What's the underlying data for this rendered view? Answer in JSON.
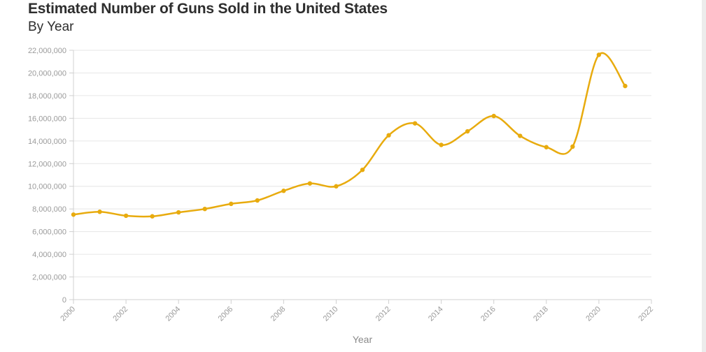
{
  "chart_data": {
    "type": "line",
    "title": "Estimated Number of Guns Sold in the United States",
    "subtitle": "By Year",
    "xlabel": "Year",
    "ylabel": "",
    "xlim": [
      2000,
      2022
    ],
    "ylim": [
      0,
      22000000
    ],
    "x_ticks": [
      2000,
      2002,
      2004,
      2006,
      2008,
      2010,
      2012,
      2014,
      2016,
      2018,
      2020,
      2022
    ],
    "y_ticks": [
      0,
      2000000,
      4000000,
      6000000,
      8000000,
      10000000,
      12000000,
      14000000,
      16000000,
      18000000,
      20000000,
      22000000
    ],
    "grid": true,
    "series": [
      {
        "color": "#e8ab0e",
        "x": [
          2000,
          2001,
          2002,
          2003,
          2004,
          2005,
          2006,
          2007,
          2008,
          2009,
          2010,
          2011,
          2012,
          2013,
          2014,
          2015,
          2016,
          2017,
          2018,
          2019,
          2020,
          2021
        ],
        "values": [
          7500000,
          7750000,
          7400000,
          7350000,
          7700000,
          8000000,
          8450000,
          8750000,
          9600000,
          10250000,
          10000000,
          11450000,
          14500000,
          15550000,
          13650000,
          14850000,
          16200000,
          14450000,
          13450000,
          13500000,
          21600000,
          18850000
        ]
      }
    ]
  },
  "colors": {
    "line": "#e8ab0e",
    "grid": "#e6e6e6",
    "axis": "#d0d0d0",
    "tick_text": "#9a9a9a",
    "title_text": "#2e2e2e"
  }
}
